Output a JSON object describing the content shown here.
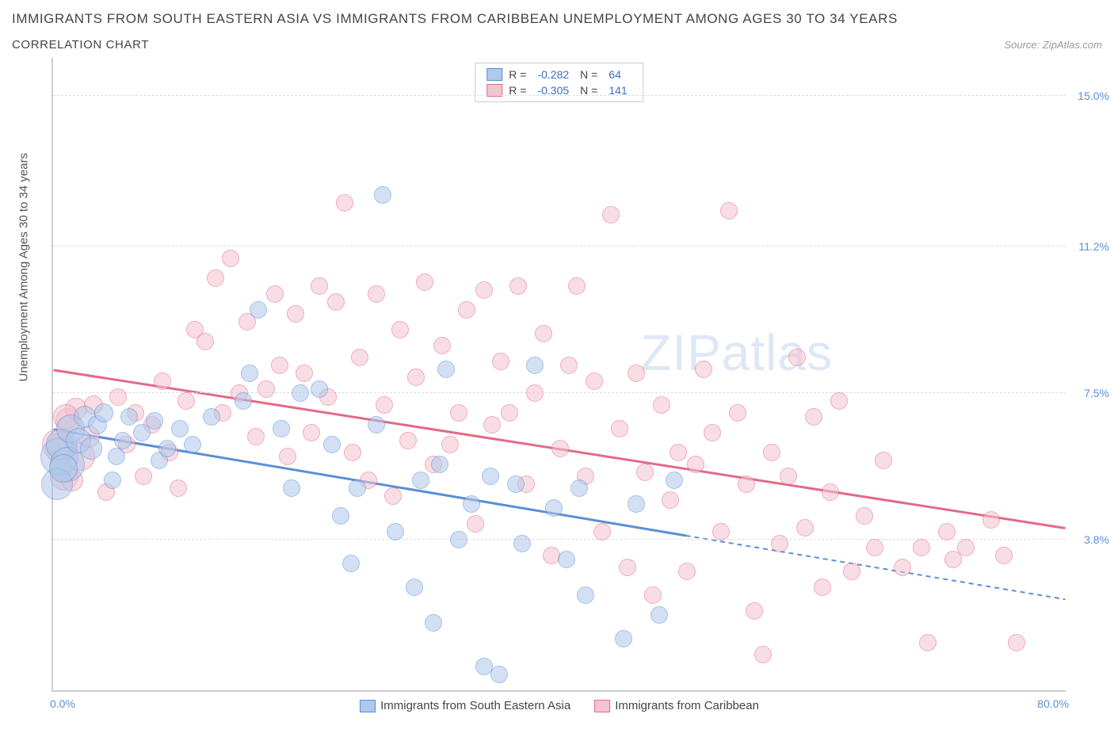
{
  "title": "IMMIGRANTS FROM SOUTH EASTERN ASIA VS IMMIGRANTS FROM CARIBBEAN UNEMPLOYMENT AMONG AGES 30 TO 34 YEARS",
  "subtitle": "CORRELATION CHART",
  "source_prefix": "Source: ",
  "source_name": "ZipAtlas.com",
  "yaxis_title": "Unemployment Among Ages 30 to 34 years",
  "watermark_a": "ZIP",
  "watermark_b": "atlas",
  "chart": {
    "type": "scatter",
    "xlim": [
      0,
      80
    ],
    "ylim": [
      0,
      16
    ],
    "yticks": [
      {
        "v": 3.8,
        "label": "3.8%"
      },
      {
        "v": 7.5,
        "label": "7.5%"
      },
      {
        "v": 11.2,
        "label": "11.2%"
      },
      {
        "v": 15.0,
        "label": "15.0%"
      }
    ],
    "xlim_labels": {
      "min": "0.0%",
      "max": "80.0%"
    },
    "background": "#ffffff",
    "grid_color": "#dddddd",
    "axis_color": "#cccccc",
    "tick_label_color": "#5a8fd6"
  },
  "series": [
    {
      "key": "sea",
      "label": "Immigrants from South Eastern Asia",
      "fill": "#b0c8ea",
      "stroke": "#5a8fd6",
      "fill_opacity": 0.55,
      "r": 10,
      "R": "-0.282",
      "N": "64",
      "trend": {
        "x1": 0,
        "y1": 6.6,
        "x2": 80,
        "y2": 2.3,
        "solid_until_x": 50
      },
      "points": [
        [
          0.5,
          5.9,
          24
        ],
        [
          0.7,
          6.2,
          20
        ],
        [
          1.1,
          5.7,
          22
        ],
        [
          1.4,
          6.6,
          18
        ],
        [
          2.0,
          6.3,
          16
        ],
        [
          2.5,
          6.9,
          14
        ],
        [
          3.0,
          6.1,
          14
        ],
        [
          3.5,
          6.7,
          12
        ],
        [
          0.3,
          5.2,
          20
        ],
        [
          0.8,
          5.6,
          18
        ],
        [
          4.0,
          7.0,
          12
        ],
        [
          4.7,
          5.3,
          11
        ],
        [
          5.0,
          5.9,
          11
        ],
        [
          5.5,
          6.3,
          11
        ],
        [
          6.0,
          6.9,
          11
        ],
        [
          7.0,
          6.5,
          11
        ],
        [
          8.0,
          6.8,
          11
        ],
        [
          8.4,
          5.8,
          11
        ],
        [
          9.0,
          6.1,
          11
        ],
        [
          10.0,
          6.6,
          11
        ],
        [
          11.0,
          6.2,
          11
        ],
        [
          12.5,
          6.9,
          11
        ],
        [
          15.0,
          7.3,
          11
        ],
        [
          15.5,
          8.0,
          11
        ],
        [
          16.2,
          9.6,
          11
        ],
        [
          18.0,
          6.6,
          11
        ],
        [
          18.8,
          5.1,
          11
        ],
        [
          19.5,
          7.5,
          11
        ],
        [
          21.0,
          7.6,
          11
        ],
        [
          22.0,
          6.2,
          11
        ],
        [
          22.7,
          4.4,
          11
        ],
        [
          23.5,
          3.2,
          11
        ],
        [
          26.0,
          12.5,
          11
        ],
        [
          24.0,
          5.1,
          11
        ],
        [
          25.5,
          6.7,
          11
        ],
        [
          27.0,
          4.0,
          11
        ],
        [
          28.5,
          2.6,
          11
        ],
        [
          29.0,
          5.3,
          11
        ],
        [
          30.0,
          1.7,
          11
        ],
        [
          30.5,
          5.7,
          11
        ],
        [
          31.0,
          8.1,
          11
        ],
        [
          32.0,
          3.8,
          11
        ],
        [
          33.0,
          4.7,
          11
        ],
        [
          34.0,
          0.6,
          11
        ],
        [
          34.5,
          5.4,
          11
        ],
        [
          35.2,
          0.4,
          11
        ],
        [
          36.5,
          5.2,
          11
        ],
        [
          37.0,
          3.7,
          11
        ],
        [
          38.0,
          8.2,
          11
        ],
        [
          39.5,
          4.6,
          11
        ],
        [
          40.5,
          3.3,
          11
        ],
        [
          41.5,
          5.1,
          11
        ],
        [
          42.0,
          2.4,
          11
        ],
        [
          45.0,
          1.3,
          11
        ],
        [
          46.0,
          4.7,
          11
        ],
        [
          47.8,
          1.9,
          11
        ],
        [
          49.0,
          5.3,
          11
        ]
      ]
    },
    {
      "key": "car",
      "label": "Immigrants from Caribbean",
      "fill": "#f3c3cf",
      "stroke": "#e26a87",
      "fill_opacity": 0.55,
      "r": 10,
      "R": "-0.305",
      "N": "141",
      "trend": {
        "x1": 0,
        "y1": 8.1,
        "x2": 80,
        "y2": 4.1,
        "solid_until_x": 80
      },
      "points": [
        [
          0.6,
          6.1,
          20
        ],
        [
          0.9,
          5.4,
          18
        ],
        [
          1.2,
          6.8,
          16
        ],
        [
          1.8,
          7.1,
          14
        ],
        [
          2.2,
          5.9,
          18
        ],
        [
          2.8,
          6.4,
          14
        ],
        [
          3.2,
          7.2,
          12
        ],
        [
          1.0,
          6.9,
          16
        ],
        [
          0.4,
          6.2,
          20
        ],
        [
          1.5,
          5.3,
          14
        ],
        [
          4.2,
          5.0,
          11
        ],
        [
          5.1,
          7.4,
          11
        ],
        [
          5.8,
          6.2,
          11
        ],
        [
          6.5,
          7.0,
          11
        ],
        [
          7.1,
          5.4,
          11
        ],
        [
          7.8,
          6.7,
          11
        ],
        [
          8.6,
          7.8,
          11
        ],
        [
          9.2,
          6.0,
          11
        ],
        [
          9.9,
          5.1,
          11
        ],
        [
          10.5,
          7.3,
          11
        ],
        [
          11.2,
          9.1,
          11
        ],
        [
          12.0,
          8.8,
          11
        ],
        [
          12.8,
          10.4,
          11
        ],
        [
          13.4,
          7.0,
          11
        ],
        [
          14.0,
          10.9,
          11
        ],
        [
          14.7,
          7.5,
          11
        ],
        [
          15.3,
          9.3,
          11
        ],
        [
          16.0,
          6.4,
          11
        ],
        [
          16.8,
          7.6,
          11
        ],
        [
          17.5,
          10.0,
          11
        ],
        [
          17.9,
          8.2,
          11
        ],
        [
          18.5,
          5.9,
          11
        ],
        [
          19.1,
          9.5,
          11
        ],
        [
          19.8,
          8.0,
          11
        ],
        [
          20.4,
          6.5,
          11
        ],
        [
          21.0,
          10.2,
          11
        ],
        [
          21.7,
          7.4,
          11
        ],
        [
          22.3,
          9.8,
          11
        ],
        [
          23.0,
          12.3,
          11
        ],
        [
          23.6,
          6.0,
          11
        ],
        [
          24.2,
          8.4,
          11
        ],
        [
          24.9,
          5.3,
          11
        ],
        [
          25.5,
          10.0,
          11
        ],
        [
          26.1,
          7.2,
          11
        ],
        [
          26.8,
          4.9,
          11
        ],
        [
          27.4,
          9.1,
          11
        ],
        [
          28.0,
          6.3,
          11
        ],
        [
          28.6,
          7.9,
          11
        ],
        [
          29.3,
          10.3,
          11
        ],
        [
          30.0,
          5.7,
          11
        ],
        [
          30.7,
          8.7,
          11
        ],
        [
          31.3,
          6.2,
          11
        ],
        [
          32.0,
          7.0,
          11
        ],
        [
          32.6,
          9.6,
          11
        ],
        [
          33.3,
          4.2,
          11
        ],
        [
          34.0,
          10.1,
          11
        ],
        [
          34.6,
          6.7,
          11
        ],
        [
          35.3,
          8.3,
          11
        ],
        [
          36.0,
          7.0,
          11
        ],
        [
          36.7,
          10.2,
          11
        ],
        [
          37.3,
          5.2,
          11
        ],
        [
          38.0,
          7.5,
          11
        ],
        [
          38.7,
          9.0,
          11
        ],
        [
          39.3,
          3.4,
          11
        ],
        [
          40.0,
          6.1,
          11
        ],
        [
          40.7,
          8.2,
          11
        ],
        [
          41.3,
          10.2,
          11
        ],
        [
          42.0,
          5.4,
          11
        ],
        [
          42.7,
          7.8,
          11
        ],
        [
          43.3,
          4.0,
          11
        ],
        [
          44.0,
          12.0,
          11
        ],
        [
          44.7,
          6.6,
          11
        ],
        [
          45.3,
          3.1,
          11
        ],
        [
          46.0,
          8.0,
          11
        ],
        [
          46.7,
          5.5,
          11
        ],
        [
          47.3,
          2.4,
          11
        ],
        [
          48.0,
          7.2,
          11
        ],
        [
          48.7,
          4.8,
          11
        ],
        [
          49.3,
          6.0,
          11
        ],
        [
          50.0,
          3.0,
          11
        ],
        [
          50.7,
          5.7,
          11
        ],
        [
          51.3,
          8.1,
          11
        ],
        [
          52.0,
          6.5,
          11
        ],
        [
          52.7,
          4.0,
          11
        ],
        [
          53.3,
          12.1,
          11
        ],
        [
          54.0,
          7.0,
          11
        ],
        [
          54.7,
          5.2,
          11
        ],
        [
          55.3,
          2.0,
          11
        ],
        [
          56.0,
          0.9,
          11
        ],
        [
          56.7,
          6.0,
          11
        ],
        [
          57.3,
          3.7,
          11
        ],
        [
          58.0,
          5.4,
          11
        ],
        [
          58.7,
          8.4,
          11
        ],
        [
          59.3,
          4.1,
          11
        ],
        [
          60.0,
          6.9,
          11
        ],
        [
          60.7,
          2.6,
          11
        ],
        [
          61.3,
          5.0,
          11
        ],
        [
          62.0,
          7.3,
          11
        ],
        [
          63.0,
          3.0,
          11
        ],
        [
          64.0,
          4.4,
          11
        ],
        [
          64.8,
          3.6,
          11
        ],
        [
          65.5,
          5.8,
          11
        ],
        [
          67.0,
          3.1,
          11
        ],
        [
          68.5,
          3.6,
          11
        ],
        [
          69.0,
          1.2,
          11
        ],
        [
          70.5,
          4.0,
          11
        ],
        [
          71.0,
          3.3,
          11
        ],
        [
          72.0,
          3.6,
          11
        ],
        [
          74.0,
          4.3,
          11
        ],
        [
          75.0,
          3.4,
          11
        ],
        [
          76.0,
          1.2,
          11
        ]
      ]
    }
  ],
  "legend_labels": {
    "R_prefix": "R =",
    "N_prefix": "N ="
  }
}
